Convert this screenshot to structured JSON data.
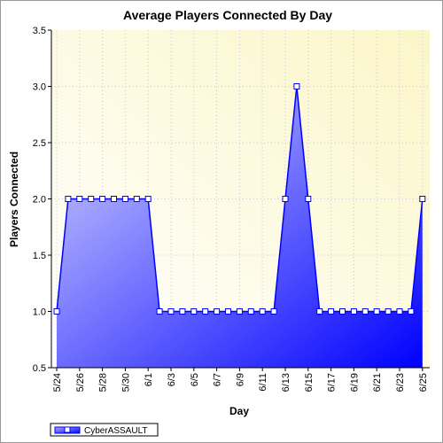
{
  "chart_data": {
    "type": "area",
    "title": "Average Players Connected By Day",
    "xlabel": "Day",
    "ylabel": "Players Connected",
    "ylim": [
      0.5,
      3.5
    ],
    "yticks": [
      "0.5",
      "1.0",
      "1.5",
      "2.0",
      "2.5",
      "3.0",
      "3.5"
    ],
    "x_tick_labels": [
      "5/24",
      "5/26",
      "5/28",
      "5/30",
      "6/1",
      "6/3",
      "6/5",
      "6/7",
      "6/9",
      "6/11",
      "6/13",
      "6/15",
      "6/17",
      "6/19",
      "6/21",
      "6/23",
      "6/25"
    ],
    "x": [
      "5/24",
      "5/25",
      "5/26",
      "5/27",
      "5/28",
      "5/29",
      "5/30",
      "5/31",
      "6/1",
      "6/2",
      "6/3",
      "6/4",
      "6/5",
      "6/6",
      "6/7",
      "6/8",
      "6/9",
      "6/10",
      "6/11",
      "6/12",
      "6/13",
      "6/14",
      "6/15",
      "6/16",
      "6/17",
      "6/18",
      "6/19",
      "6/20",
      "6/21",
      "6/22",
      "6/23",
      "6/24",
      "6/25"
    ],
    "series": [
      {
        "name": "CyberASSAULT",
        "color": "#0000ff",
        "values": [
          1,
          2,
          2,
          2,
          2,
          2,
          2,
          2,
          2,
          1,
          1,
          1,
          1,
          1,
          1,
          1,
          1,
          1,
          1,
          1,
          2,
          3,
          2,
          1,
          1,
          1,
          1,
          1,
          1,
          1,
          1,
          1,
          2
        ]
      }
    ],
    "grid": true,
    "legend_position": "bottom-left",
    "background_color": "#ffffe0"
  }
}
